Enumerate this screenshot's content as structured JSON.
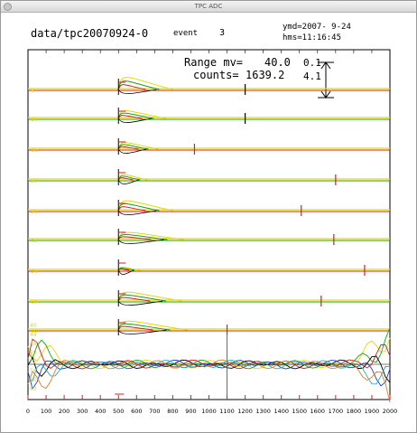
{
  "window": {
    "title": "TPC ADC"
  },
  "header": {
    "file": "data/tpc20070924-0",
    "event_label": "event",
    "event_value": "3",
    "ymd": "ymd=2007- 9-24",
    "hms": "hms=11:16:45",
    "range_label": "Range mv=",
    "range_value": "40.0",
    "range_right": "0.1",
    "counts_label": "counts=",
    "counts_value": "1639.2",
    "counts_right": "4.1"
  },
  "colors": {
    "yellow": "#e6d800",
    "green": "#1aa01a",
    "red": "#d02020",
    "black": "#000000",
    "blue": "#2040d0",
    "cyan": "#20b0c0",
    "orange": "#e08020"
  },
  "chart_data": {
    "type": "line",
    "x": {
      "min": 0,
      "max": 2000,
      "ticks": [
        0,
        100,
        200,
        300,
        400,
        500,
        600,
        700,
        800,
        900,
        1000,
        1100,
        1200,
        1300,
        1400,
        1500,
        1600,
        1700,
        1800,
        1900,
        2000
      ]
    },
    "trigger_x": 500,
    "channels": [
      {
        "label": "8",
        "marker_x": 1200,
        "decay_span": 300
      },
      {
        "label": "10",
        "marker_x": 1200,
        "decay_span": 260
      },
      {
        "label": "16",
        "marker_x": 920,
        "decay_span": 220
      },
      {
        "label": "20",
        "marker_x": 1700,
        "decay_span": 160
      },
      {
        "label": "26",
        "marker_x": 1510,
        "decay_span": 300
      },
      {
        "label": "32",
        "marker_x": 1690,
        "decay_span": 360
      },
      {
        "label": "36",
        "marker_x": 1860,
        "decay_span": 120
      },
      {
        "label": "40",
        "marker_x": 1620,
        "decay_span": 350
      },
      {
        "label": "44",
        "marker_x": 1100,
        "decay_span": 380
      }
    ],
    "overlap_labels": [
      "40",
      "44",
      "48",
      "50",
      "52",
      "56",
      "60",
      "63"
    ]
  }
}
